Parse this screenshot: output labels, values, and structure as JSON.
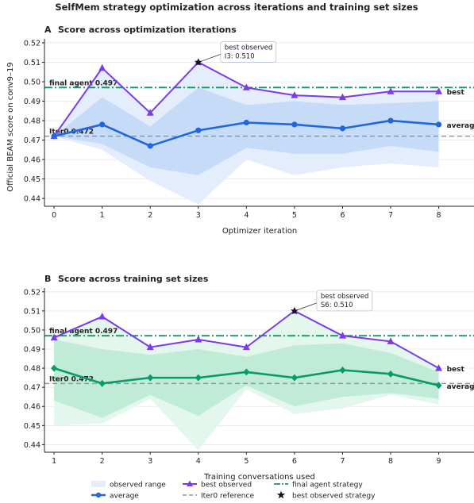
{
  "figure": {
    "suptitle": "SelfMem strategy optimization across iterations and training set sizes",
    "ylabel": "Official BEAM score on conv9–19"
  },
  "colors": {
    "best": "#7c3aed",
    "average_a": "#1f66e0",
    "band_a_outer": "#e3edfb",
    "band_a_inner": "#c6dbf8",
    "average_b": "#079a6a",
    "band_b_outer": "#e4f7ee",
    "band_b_inner": "#c0ecd7",
    "final": "#149466",
    "iter0": "#8e97a6",
    "grid": "#e6e6e6"
  },
  "chart_data": [
    {
      "id": "A",
      "type": "line",
      "panel_letter": "A",
      "title": "Score across optimization iterations",
      "xlabel": "Optimizer iteration",
      "ylabel": "Official BEAM score on conv9–19",
      "xlim": [
        -0.2,
        8.75
      ],
      "ylim": [
        0.436,
        0.522
      ],
      "x": [
        0,
        1,
        2,
        3,
        4,
        5,
        6,
        7,
        8
      ],
      "yticks": [
        0.44,
        0.45,
        0.46,
        0.47,
        0.48,
        0.49,
        0.5,
        0.51,
        0.52
      ],
      "grid": true,
      "series": [
        {
          "name": "best observed",
          "marker": "triangle",
          "end_label": "best",
          "values": [
            0.472,
            0.507,
            0.484,
            0.51,
            0.497,
            0.493,
            0.492,
            0.495,
            0.495
          ]
        },
        {
          "name": "average",
          "marker": "circle",
          "end_label": "average",
          "values": [
            0.472,
            0.478,
            0.467,
            0.475,
            0.479,
            0.478,
            0.476,
            0.48,
            0.478
          ]
        }
      ],
      "bands": [
        {
          "name": "observed range",
          "lower": [
            0.472,
            0.465,
            0.449,
            0.437,
            0.46,
            0.452,
            0.456,
            0.458,
            0.456
          ],
          "upper": [
            0.472,
            0.507,
            0.484,
            0.51,
            0.497,
            0.493,
            0.492,
            0.495,
            0.495
          ]
        },
        {
          "name": "inner range",
          "lower": [
            0.472,
            0.468,
            0.456,
            0.452,
            0.466,
            0.463,
            0.463,
            0.467,
            0.464
          ],
          "upper": [
            0.472,
            0.492,
            0.477,
            0.497,
            0.488,
            0.49,
            0.488,
            0.489,
            0.49
          ]
        }
      ],
      "reference_lines": [
        {
          "name": "final agent strategy",
          "value": 0.497,
          "label": "final agent 0.497"
        },
        {
          "name": "Iter0 reference",
          "value": 0.472,
          "label": "Iter0 0.472"
        }
      ],
      "annotation": {
        "line1": "best observed",
        "line2": "I3: 0.510",
        "x": 3,
        "y": 0.51
      }
    },
    {
      "id": "B",
      "type": "line",
      "panel_letter": "B",
      "title": "Score across training set sizes",
      "xlabel": "Training conversations used",
      "ylabel": "Official BEAM score on conv9–19",
      "xlim": [
        0.8,
        9.75
      ],
      "ylim": [
        0.436,
        0.522
      ],
      "x": [
        1,
        2,
        3,
        4,
        5,
        6,
        7,
        8,
        9
      ],
      "yticks": [
        0.44,
        0.45,
        0.46,
        0.47,
        0.48,
        0.49,
        0.5,
        0.51,
        0.52
      ],
      "grid": true,
      "series": [
        {
          "name": "best observed",
          "marker": "triangle",
          "end_label": "best",
          "values": [
            0.496,
            0.507,
            0.491,
            0.495,
            0.491,
            0.51,
            0.497,
            0.494,
            0.48
          ]
        },
        {
          "name": "average",
          "marker": "diamond",
          "end_label": "average",
          "values": [
            0.48,
            0.472,
            0.475,
            0.475,
            0.478,
            0.475,
            0.479,
            0.477,
            0.471
          ]
        }
      ],
      "bands": [
        {
          "name": "observed range",
          "lower": [
            0.45,
            0.451,
            0.464,
            0.437,
            0.469,
            0.456,
            0.459,
            0.466,
            0.461
          ],
          "upper": [
            0.496,
            0.507,
            0.491,
            0.495,
            0.491,
            0.51,
            0.497,
            0.494,
            0.48
          ]
        },
        {
          "name": "inner range",
          "lower": [
            0.463,
            0.454,
            0.466,
            0.455,
            0.471,
            0.46,
            0.465,
            0.467,
            0.464
          ],
          "upper": [
            0.495,
            0.49,
            0.487,
            0.49,
            0.486,
            0.492,
            0.493,
            0.488,
            0.478
          ]
        }
      ],
      "reference_lines": [
        {
          "name": "final agent strategy",
          "value": 0.497,
          "label": "final agent 0.497"
        },
        {
          "name": "Iter0 reference",
          "value": 0.472,
          "label": "Iter0 0.472"
        }
      ],
      "annotation": {
        "line1": "best observed",
        "line2": "S6: 0.510",
        "x": 6,
        "y": 0.51
      }
    }
  ],
  "legend": {
    "placement": "bottom-center",
    "items": [
      {
        "label": "observed range",
        "kind": "band"
      },
      {
        "label": "best observed",
        "kind": "best"
      },
      {
        "label": "final agent strategy",
        "kind": "final"
      },
      {
        "label": "average",
        "kind": "average"
      },
      {
        "label": "Iter0 reference",
        "kind": "iter0"
      },
      {
        "label": "best observed strategy",
        "kind": "star"
      }
    ]
  }
}
